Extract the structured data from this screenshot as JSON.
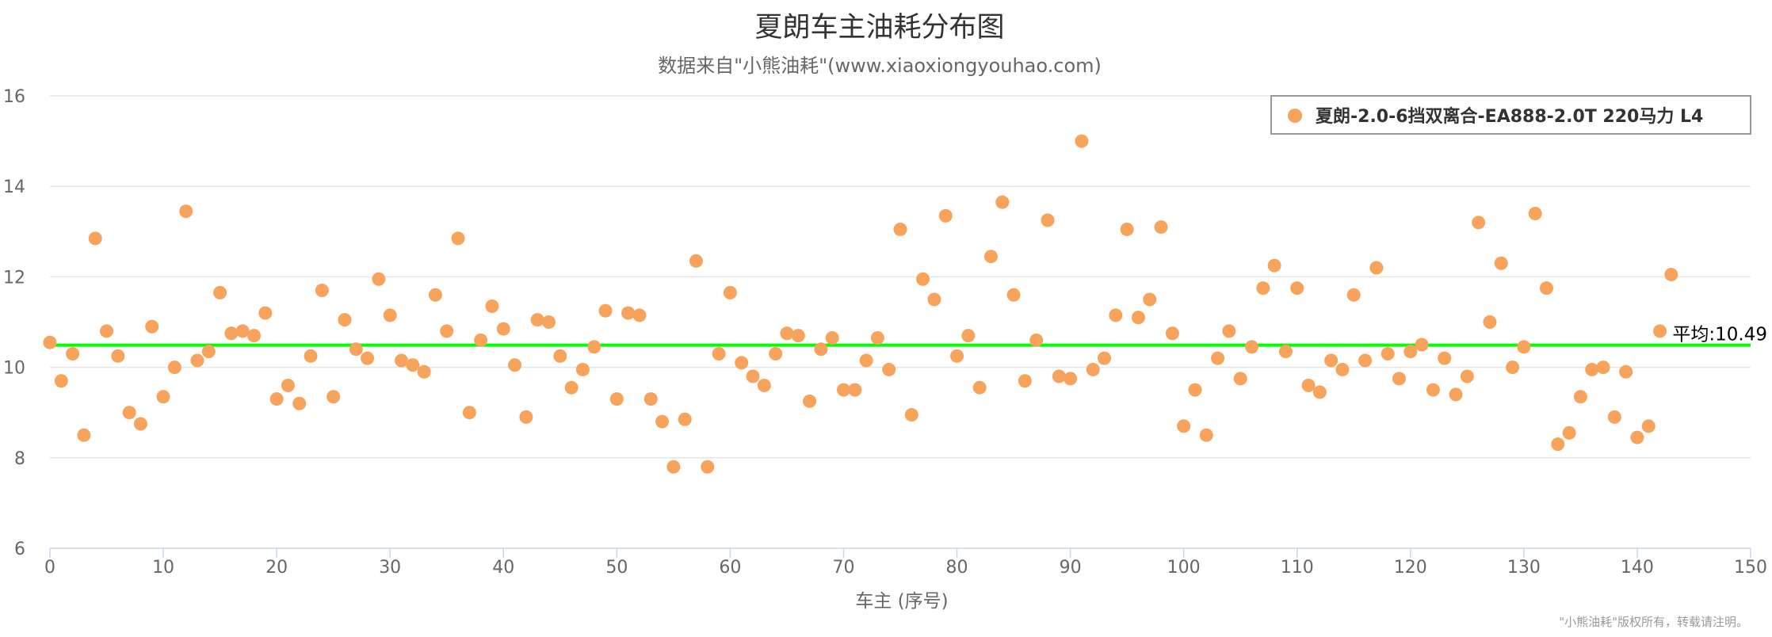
{
  "chart_data": {
    "type": "scatter",
    "title": "夏朗车主油耗分布图",
    "subtitle": "数据来自\"小熊油耗\"(www.xiaoxiongyouhao.com)",
    "xlabel": "车主 (序号)",
    "ylabel": "",
    "xlim": [
      0,
      150
    ],
    "ylim": [
      6,
      16
    ],
    "x_ticks": [
      0,
      10,
      20,
      30,
      40,
      50,
      60,
      70,
      80,
      90,
      100,
      110,
      120,
      130,
      140,
      150
    ],
    "y_ticks": [
      6,
      8,
      10,
      12,
      14,
      16
    ],
    "grid": true,
    "legend_position": "top-right",
    "series": [
      {
        "name": "夏朗-2.0-6挡双离合-EA888-2.0T 220马力 L4",
        "color": "#f7a35c",
        "x": [
          0,
          1,
          2,
          3,
          4,
          5,
          6,
          7,
          8,
          9,
          10,
          11,
          12,
          13,
          14,
          15,
          16,
          17,
          18,
          19,
          20,
          21,
          22,
          23,
          24,
          25,
          26,
          27,
          28,
          29,
          30,
          31,
          32,
          33,
          34,
          35,
          36,
          37,
          38,
          39,
          40,
          41,
          42,
          43,
          44,
          45,
          46,
          47,
          48,
          49,
          50,
          51,
          52,
          53,
          54,
          55,
          56,
          57,
          58,
          59,
          60,
          61,
          62,
          63,
          64,
          65,
          66,
          67,
          68,
          69,
          70,
          71,
          72,
          73,
          74,
          75,
          76,
          77,
          78,
          79,
          80,
          81,
          82,
          83,
          84,
          85,
          86,
          87,
          88,
          89,
          90,
          91,
          92,
          93,
          94,
          95,
          96,
          97,
          98,
          99,
          100,
          101,
          102,
          103,
          104,
          105,
          106,
          107,
          108,
          109,
          110,
          111,
          112,
          113,
          114,
          115,
          116,
          117,
          118,
          119,
          120,
          121,
          122,
          123,
          124,
          125,
          126,
          127,
          128,
          129,
          130,
          131,
          132,
          133,
          134,
          135,
          136,
          137,
          138,
          139,
          140,
          141,
          142,
          143
        ],
        "y": [
          10.55,
          9.7,
          10.3,
          8.5,
          12.85,
          10.8,
          10.25,
          9.0,
          8.75,
          10.9,
          9.35,
          10.0,
          13.45,
          10.15,
          10.35,
          11.65,
          10.75,
          10.8,
          10.7,
          11.2,
          9.3,
          9.6,
          9.2,
          10.25,
          11.7,
          9.35,
          11.05,
          10.4,
          10.2,
          11.95,
          11.15,
          10.15,
          10.05,
          9.9,
          11.6,
          10.8,
          12.85,
          9.0,
          10.6,
          11.35,
          10.85,
          10.05,
          8.9,
          11.05,
          11.0,
          10.25,
          9.55,
          9.95,
          10.45,
          11.25,
          9.3,
          11.2,
          11.15,
          9.3,
          8.8,
          7.8,
          8.85,
          12.35,
          7.8,
          10.3,
          11.65,
          10.1,
          9.8,
          9.6,
          10.3,
          10.75,
          10.7,
          9.25,
          10.4,
          10.65,
          9.5,
          9.5,
          10.15,
          10.65,
          9.95,
          13.05,
          8.95,
          11.95,
          11.5,
          13.35,
          10.25,
          10.7,
          9.55,
          12.45,
          13.65,
          11.6,
          9.7,
          10.6,
          13.25,
          9.8,
          9.75,
          15.0,
          9.95,
          10.2,
          11.15,
          13.05,
          11.1,
          11.5,
          13.1,
          10.75,
          8.7,
          9.5,
          8.5,
          10.2,
          10.8,
          9.75,
          10.45,
          11.75,
          12.25,
          10.35,
          11.75,
          9.6,
          9.45,
          10.15,
          9.95,
          11.6,
          10.15,
          12.2,
          10.3,
          9.75,
          10.35,
          10.5,
          9.5,
          10.2,
          9.4,
          9.8,
          13.2,
          11.0,
          12.3,
          10.0,
          10.45,
          13.4,
          11.75,
          8.3,
          8.55,
          9.35,
          9.95,
          10.0,
          8.9,
          9.9,
          8.45,
          8.7,
          10.8,
          12.05
        ]
      }
    ],
    "average": {
      "value": 10.49,
      "label": "平均:10.49",
      "color": "#00ff00"
    },
    "credit": "\"小熊油耗\"版权所有，转载请注明。"
  }
}
